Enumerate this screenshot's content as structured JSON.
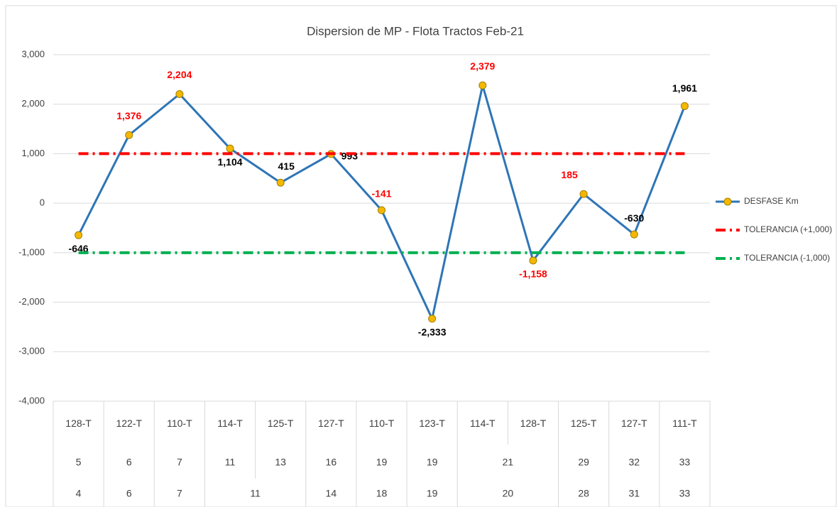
{
  "chart_data": {
    "type": "line",
    "title": "Dispersion de MP - Flota Tractos   Feb-21",
    "categories": [
      "128-T",
      "122-T",
      "110-T",
      "114-T",
      "125-T",
      "127-T",
      "110-T",
      "123-T",
      "114-T",
      "128-T",
      "125-T",
      "127-T",
      "111-T"
    ],
    "categories_level2": [
      "5",
      "6",
      "7",
      "11",
      "13",
      "16",
      "19",
      "19",
      "21",
      null,
      "29",
      "32",
      "33"
    ],
    "categories_level3": [
      "4",
      "6",
      "7",
      "11",
      null,
      "14",
      "18",
      "19",
      "20",
      null,
      "28",
      "31",
      "33"
    ],
    "series": [
      {
        "name": "DESFASE Km",
        "color": "#2e75b6",
        "marker_color": "#f5b800",
        "values": [
          -646,
          1376,
          2204,
          1104,
          415,
          993,
          -141,
          -2333,
          2379,
          -1158,
          185,
          -630,
          1961
        ],
        "value_labels": [
          "-646",
          "1,376",
          "2,204",
          "1,104",
          "415",
          "993",
          "-141",
          "-2,333",
          "2,379",
          "-1,158",
          "185",
          "-630",
          "1,961"
        ],
        "value_label_colors": [
          "#000000",
          "#ff0000",
          "#ff0000",
          "#000000",
          "#000000",
          "#000000",
          "#ff0000",
          "#000000",
          "#ff0000",
          "#ff0000",
          "#ff0000",
          "#000000",
          "#000000"
        ]
      },
      {
        "name": "TOLERANCIA (+1,000)",
        "color": "#ff0000",
        "dash": true,
        "values": [
          1000,
          1000,
          1000,
          1000,
          1000,
          1000,
          1000,
          1000,
          1000,
          1000,
          1000,
          1000,
          1000
        ]
      },
      {
        "name": "TOLERANCIA (-1,000)",
        "color": "#00b050",
        "dash": true,
        "values": [
          -1000,
          -1000,
          -1000,
          -1000,
          -1000,
          -1000,
          -1000,
          -1000,
          -1000,
          -1000,
          -1000,
          -1000,
          -1000
        ]
      }
    ],
    "ylim": [
      -4000,
      3000
    ],
    "yticks": [
      {
        "value": -4000,
        "label": "-4,000"
      },
      {
        "value": -3000,
        "label": "-3,000"
      },
      {
        "value": -2000,
        "label": "-2,000"
      },
      {
        "value": -1000,
        "label": "-1,000"
      },
      0,
      {
        "value": 1000,
        "label": "1,000"
      },
      {
        "value": 2000,
        "label": "2,000"
      },
      {
        "value": 3000,
        "label": "3,000"
      }
    ],
    "grid": true,
    "legend": "right"
  }
}
